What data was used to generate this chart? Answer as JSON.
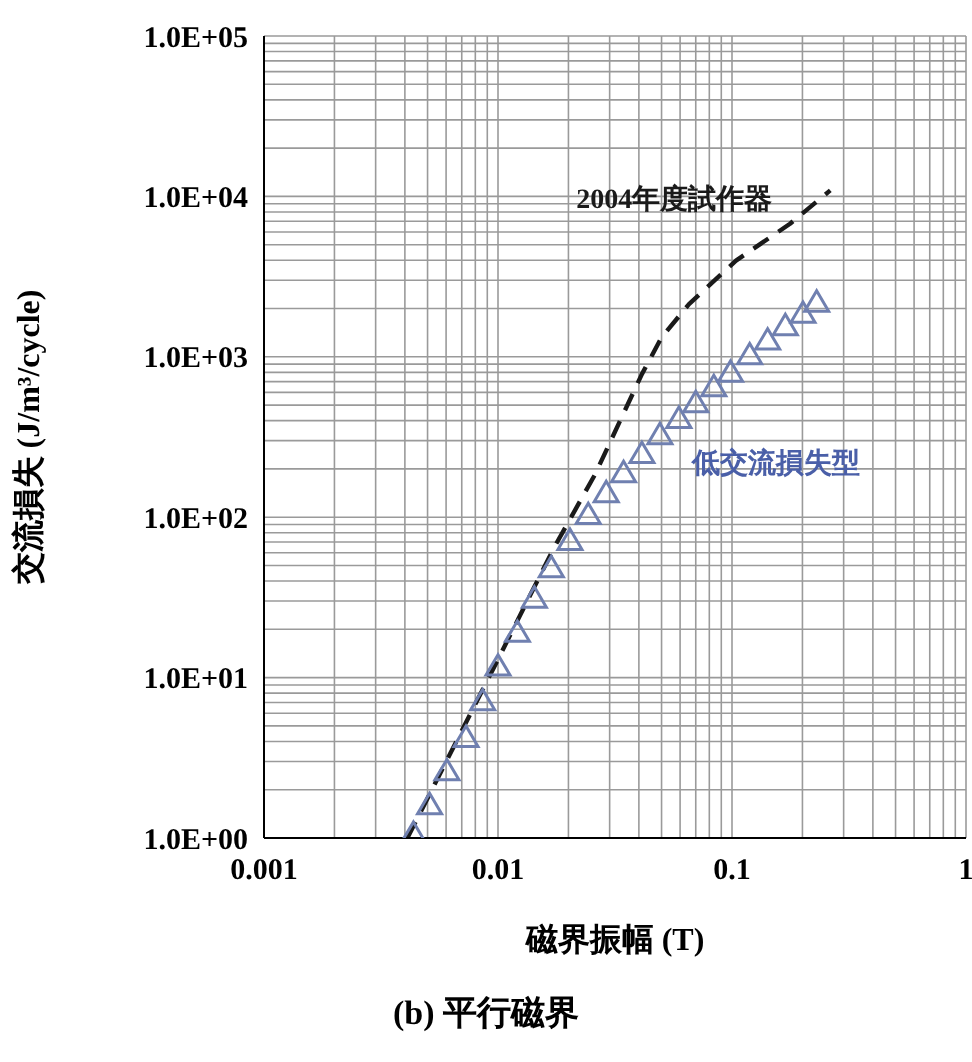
{
  "chart_data": {
    "type": "line",
    "title": "(b) 平行磁界",
    "xlabel": "磁界振幅 (T)",
    "ylabel": "交流損失 (J/m³/cycle)",
    "log": "xy",
    "xlim": [
      0.001,
      1
    ],
    "ylim": [
      1,
      100000
    ],
    "xticks": [
      0.001,
      {
        "value": 0.002,
        "label": null
      },
      {
        "value": 0.003,
        "label": null
      },
      {
        "value": 0.004,
        "label": null
      },
      {
        "value": 0.005,
        "label": null
      },
      {
        "value": 0.006,
        "label": null
      },
      {
        "value": 0.007,
        "label": null
      },
      {
        "value": 0.008,
        "label": null
      },
      {
        "value": 0.009,
        "label": null
      },
      0.01,
      {
        "value": 0.02,
        "label": null
      },
      {
        "value": 0.03,
        "label": null
      },
      {
        "value": 0.04,
        "label": null
      },
      {
        "value": 0.05,
        "label": null
      },
      {
        "value": 0.06,
        "label": null
      },
      {
        "value": 0.07,
        "label": null
      },
      {
        "value": 0.08,
        "label": null
      },
      {
        "value": 0.09,
        "label": null
      },
      0.1,
      {
        "value": 0.2,
        "label": null
      },
      {
        "value": 0.3,
        "label": null
      },
      {
        "value": 0.4,
        "label": null
      },
      {
        "value": 0.5,
        "label": null
      },
      {
        "value": 0.6,
        "label": null
      },
      {
        "value": 0.7,
        "label": null
      },
      {
        "value": 0.8,
        "label": null
      },
      {
        "value": 0.9,
        "label": null
      },
      1
    ],
    "yticks": [
      {
        "value": 1,
        "label": "1.0E+00"
      },
      {
        "value": 2,
        "label": null
      },
      {
        "value": 3,
        "label": null
      },
      {
        "value": 4,
        "label": null
      },
      {
        "value": 5,
        "label": null
      },
      {
        "value": 6,
        "label": null
      },
      {
        "value": 7,
        "label": null
      },
      {
        "value": 8,
        "label": null
      },
      {
        "value": 9,
        "label": null
      },
      {
        "value": 10,
        "label": "1.0E+01"
      },
      {
        "value": 20,
        "label": null
      },
      {
        "value": 30,
        "label": null
      },
      {
        "value": 40,
        "label": null
      },
      {
        "value": 50,
        "label": null
      },
      {
        "value": 60,
        "label": null
      },
      {
        "value": 70,
        "label": null
      },
      {
        "value": 80,
        "label": null
      },
      {
        "value": 90,
        "label": null
      },
      {
        "value": 100,
        "label": "1.0E+02"
      },
      {
        "value": 200,
        "label": null
      },
      {
        "value": 300,
        "label": null
      },
      {
        "value": 400,
        "label": null
      },
      {
        "value": 500,
        "label": null
      },
      {
        "value": 600,
        "label": null
      },
      {
        "value": 700,
        "label": null
      },
      {
        "value": 800,
        "label": null
      },
      {
        "value": 900,
        "label": null
      },
      {
        "value": 1000,
        "label": "1.0E+03"
      },
      {
        "value": 2000,
        "label": null
      },
      {
        "value": 3000,
        "label": null
      },
      {
        "value": 4000,
        "label": null
      },
      {
        "value": 5000,
        "label": null
      },
      {
        "value": 6000,
        "label": null
      },
      {
        "value": 7000,
        "label": null
      },
      {
        "value": 8000,
        "label": null
      },
      {
        "value": 9000,
        "label": null
      },
      {
        "value": 10000,
        "label": "1.0E+04"
      },
      {
        "value": 20000,
        "label": null
      },
      {
        "value": 30000,
        "label": null
      },
      {
        "value": 40000,
        "label": null
      },
      {
        "value": 50000,
        "label": null
      },
      {
        "value": 60000,
        "label": null
      },
      {
        "value": 70000,
        "label": null
      },
      {
        "value": 80000,
        "label": null
      },
      {
        "value": 90000,
        "label": null
      },
      {
        "value": 100000,
        "label": "1.0E+05"
      }
    ],
    "grid": true,
    "series": [
      {
        "name": "2004年度試作器",
        "line_style": "dashed",
        "marker": "none",
        "color": "#1a1a1a",
        "x": [
          0.0041,
          0.01,
          0.0174,
          0.026,
          0.0412,
          0.05,
          0.0655,
          0.104,
          0.177,
          0.263
        ],
        "values": [
          1,
          13,
          65,
          185,
          780,
          1320,
          2130,
          3980,
          6750,
          10900
        ]
      },
      {
        "name": "低交流損失型",
        "type": "scatter",
        "marker": "triangle",
        "color": "#7080b0",
        "x": [
          0.00435,
          0.0051,
          0.00605,
          0.0073,
          0.0086,
          0.01,
          0.0121,
          0.0143,
          0.0169,
          0.0203,
          0.0243,
          0.029,
          0.0344,
          0.0412,
          0.0492,
          0.0593,
          0.07,
          0.0836,
          0.0986,
          0.119,
          0.142,
          0.169,
          0.201,
          0.23
        ],
        "values": [
          1.06,
          1.6,
          2.6,
          4.2,
          7.1,
          11.7,
          19,
          31,
          48,
          71,
          103,
          141,
          188,
          247,
          324,
          409,
          513,
          646,
          794,
          1020,
          1260,
          1550,
          1850,
          2170
        ]
      }
    ]
  }
}
